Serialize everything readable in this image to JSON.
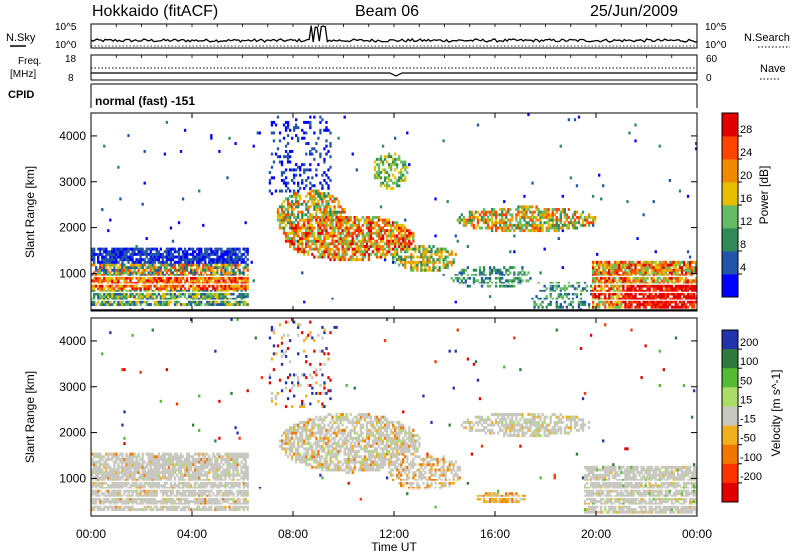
{
  "header": {
    "site": "Hokkaido (fitACF)",
    "beam": "Beam 06",
    "date": "25/Jun/2009"
  },
  "nsky_panel": {
    "left_label": "N.Sky",
    "right_label": "N.Search",
    "left_ticks": [
      "10^5",
      "10^0"
    ],
    "right_ticks": [
      "10^5",
      "10^0"
    ]
  },
  "freq_panel": {
    "left_label_line1": "Freq.",
    "left_label_line2": "[MHz]",
    "right_label": "Nave",
    "left_ticks": [
      "18",
      "8"
    ],
    "right_ticks": [
      "60",
      "0"
    ]
  },
  "cpid": {
    "label": "CPID",
    "value": "normal (fast) -151"
  },
  "x_axis": {
    "label": "Time UT",
    "ticks": [
      "00:00",
      "04:00",
      "08:00",
      "12:00",
      "16:00",
      "20:00",
      "00:00"
    ]
  },
  "power_panel": {
    "ylabel": "Slant Range [km]",
    "yticks": [
      "4000",
      "3000",
      "2000",
      "1000"
    ],
    "colorbar_label": "Power [dB]",
    "colorbar_ticks": [
      "28",
      "24",
      "20",
      "16",
      "12",
      "8",
      "4"
    ],
    "colors": [
      "#0000ff",
      "#2255aa",
      "#2e8b57",
      "#66bb66",
      "#e6c000",
      "#f08a00",
      "#ff4400",
      "#e00000"
    ]
  },
  "velocity_panel": {
    "ylabel": "Slant Range [km]",
    "yticks": [
      "4000",
      "3000",
      "2000",
      "1000"
    ],
    "colorbar_label": "Velocity [m s^-1]",
    "colorbar_ticks": [
      "200",
      "100",
      "50",
      "15",
      "-15",
      "-50",
      "-100",
      "-200"
    ],
    "colors": [
      "#2233aa",
      "#2d7a3a",
      "#55bb33",
      "#aadd66",
      "#c8c8c0",
      "#f0b020",
      "#f07800",
      "#ff3300",
      "#e00000"
    ]
  },
  "chart_data": {
    "type": "heatmap",
    "x_range_hours": [
      0,
      24
    ],
    "y_range_km": [
      180,
      4500
    ],
    "power_regions": [
      {
        "t": [
          0,
          6
        ],
        "r": [
          300,
          1500
        ],
        "level": "mixed-blue-green-orange"
      },
      {
        "t": [
          6,
          15
        ],
        "r": [
          1000,
          2700
        ],
        "level": "orange-red"
      },
      {
        "t": [
          14.5,
          20
        ],
        "r": [
          1900,
          2400
        ],
        "level": "green-orange"
      },
      {
        "t": [
          20,
          24
        ],
        "r": [
          200,
          1200
        ],
        "level": "red"
      }
    ],
    "velocity_regions": [
      {
        "t": [
          0,
          6
        ],
        "r": [
          300,
          1500
        ],
        "level": "-15 to 15"
      },
      {
        "t": [
          6,
          14
        ],
        "r": [
          600,
          2500
        ],
        "level": "-15 to 15"
      },
      {
        "t": [
          15,
          17.5
        ],
        "r": [
          300,
          700
        ],
        "level": "-50"
      },
      {
        "t": [
          19,
          24
        ],
        "r": [
          300,
          1200
        ],
        "level": "-15 to 15"
      }
    ]
  }
}
